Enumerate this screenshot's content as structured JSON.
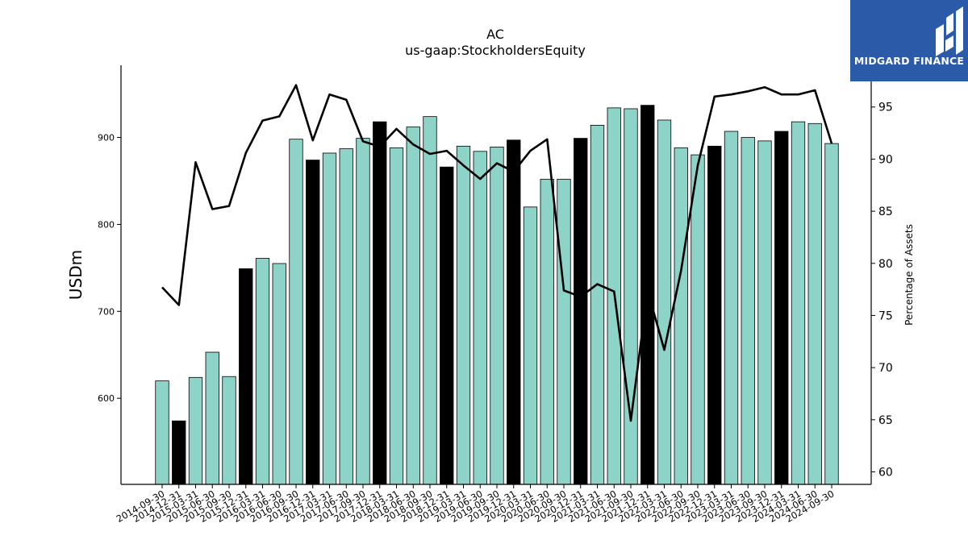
{
  "chart_data": {
    "type": "bar",
    "title": "AC",
    "subtitle": "us-gaap:StockholdersEquity",
    "xlabel": "",
    "ylabel": "USDm",
    "y2label": "Percentage of Assets",
    "ylim": [
      501,
      983
    ],
    "y2lim": [
      58.8,
      99
    ],
    "yticks": [
      600,
      700,
      800,
      900
    ],
    "y2ticks": [
      60,
      65,
      70,
      75,
      80,
      85,
      90,
      95
    ],
    "categories": [
      "2014-09-30",
      "2014-12-31",
      "2015-03-31",
      "2015-06-30",
      "2015-09-30",
      "2015-12-31",
      "2016-03-31",
      "2016-06-30",
      "2016-09-30",
      "2016-12-31",
      "2017-03-31",
      "2017-06-30",
      "2017-09-30",
      "2017-12-31",
      "2018-03-31",
      "2018-06-30",
      "2018-09-30",
      "2018-12-31",
      "2019-03-31",
      "2019-06-30",
      "2019-09-30",
      "2019-12-31",
      "2020-03-31",
      "2020-06-30",
      "2020-09-30",
      "2020-12-31",
      "2021-03-31",
      "2021-06-30",
      "2021-09-30",
      "2021-12-31",
      "2022-03-31",
      "2022-06-30",
      "2022-09-30",
      "2022-12-31",
      "2023-03-31",
      "2023-06-30",
      "2023-09-30",
      "2023-12-31",
      "2024-03-31",
      "2024-06-30",
      "2024-09-30"
    ],
    "series": [
      {
        "kind": "bar",
        "values": [
          620,
          574,
          624,
          653,
          625,
          749,
          761,
          755,
          898,
          874,
          882,
          887,
          899,
          918,
          888,
          912,
          924,
          866,
          890,
          884,
          889,
          897,
          820,
          852,
          852,
          899,
          914,
          934,
          933,
          937,
          920,
          888,
          880,
          890,
          907,
          900,
          896,
          907,
          918,
          916,
          893
        ],
        "highlight": [
          false,
          true,
          false,
          false,
          false,
          true,
          false,
          false,
          false,
          true,
          false,
          false,
          false,
          true,
          false,
          false,
          false,
          true,
          false,
          false,
          false,
          true,
          false,
          false,
          false,
          true,
          false,
          false,
          false,
          true,
          false,
          false,
          false,
          true,
          false,
          false,
          false,
          true,
          false,
          false,
          false
        ]
      },
      {
        "kind": "line",
        "axis": "right",
        "values": [
          77.7,
          76.0,
          89.7,
          85.2,
          85.5,
          90.6,
          93.7,
          94.1,
          97.1,
          91.8,
          96.2,
          95.7,
          91.7,
          91.2,
          92.9,
          91.4,
          90.5,
          90.8,
          89.4,
          88.1,
          89.6,
          88.8,
          90.8,
          91.9,
          77.4,
          76.8,
          78.0,
          77.3,
          64.9,
          77.4,
          71.7,
          79.3,
          89.4,
          96.0,
          96.2,
          96.5,
          96.9,
          96.2,
          96.2,
          96.6,
          91.5
        ]
      }
    ],
    "colors": {
      "bar": "#8dd3c7",
      "highlight_bar": "#000000",
      "line": "#000000"
    },
    "grid": false
  },
  "logo": {
    "text": "MIDGARD FINANCE",
    "bg_color": "#2b5aa8"
  }
}
